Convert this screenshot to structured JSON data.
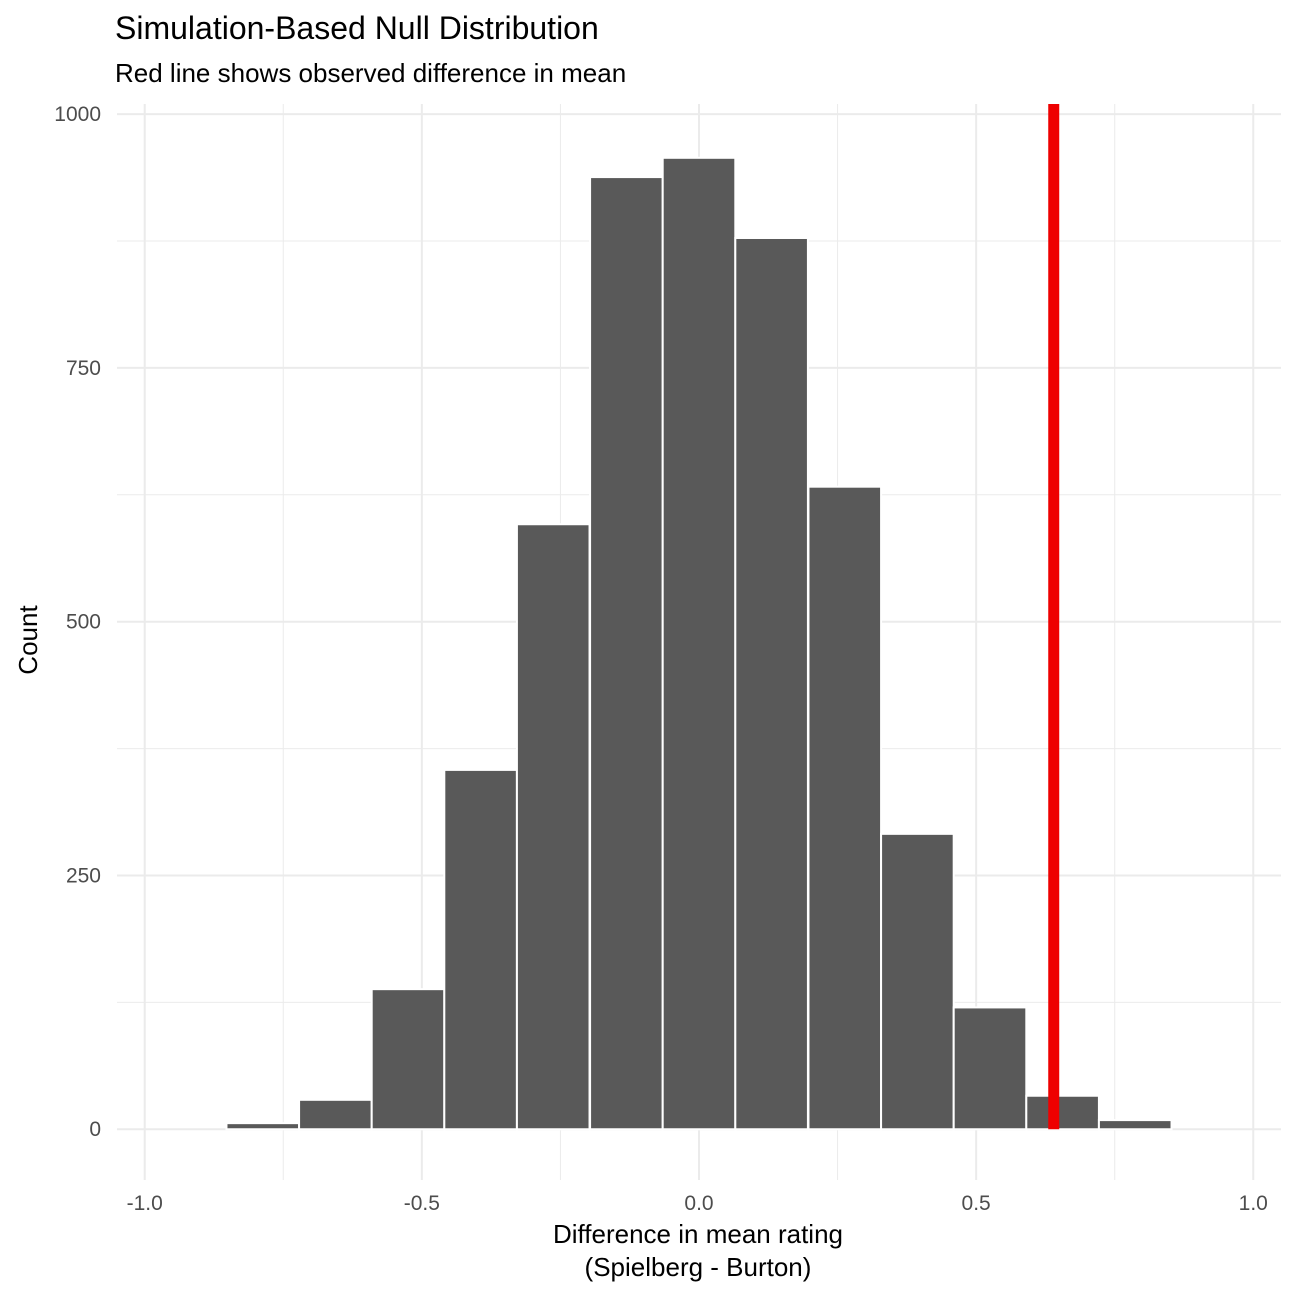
{
  "chart_data": {
    "type": "bar",
    "title": "Simulation-Based Null Distribution",
    "subtitle": "Red line shows observed difference in mean",
    "xlabel": "Difference in mean rating",
    "xlabel_line2": "(Spielberg - Burton)",
    "ylabel": "Count",
    "xlim": [
      -1.05,
      1.05
    ],
    "ylim": [
      -50,
      1010
    ],
    "x_ticks": [
      -1.0,
      -0.5,
      0.0,
      0.5,
      1.0
    ],
    "x_tick_labels": [
      "-1.0",
      "-0.5",
      "0.0",
      "0.5",
      "1.0"
    ],
    "y_ticks": [
      0,
      250,
      500,
      750,
      1000
    ],
    "y_tick_labels": [
      "0",
      "250",
      "500",
      "750",
      "1000"
    ],
    "bin_width": 0.131,
    "bin_centers": [
      -0.787,
      -0.656,
      -0.525,
      -0.394,
      -0.263,
      -0.131,
      0.0,
      0.131,
      0.263,
      0.394,
      0.525,
      0.656,
      0.787
    ],
    "counts": [
      6,
      29,
      138,
      354,
      596,
      938,
      957,
      878,
      633,
      291,
      120,
      33,
      9
    ],
    "observed_difference": 0.64,
    "grid": true,
    "legend": "none",
    "colors": {
      "bar": "#595959",
      "bar_border": "#ffffff",
      "observed_line": "#ee0000",
      "grid": "#ebebeb"
    }
  }
}
